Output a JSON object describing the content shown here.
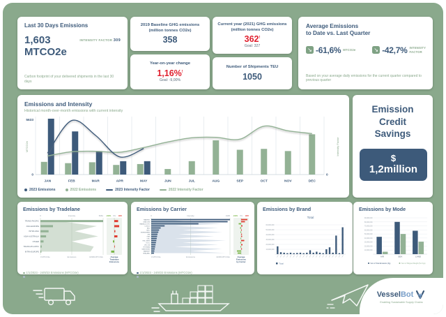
{
  "colors": {
    "background": "#8aa98c",
    "primary_blue": "#3d5a7a",
    "bar_green": "#93b295",
    "accent_red": "#e01e2d",
    "delta_red": "#e03c31",
    "delta_green": "#7ab648"
  },
  "header_cards": {
    "last30": {
      "title": "Last 30 Days Emissions",
      "value": "1,603",
      "unit": "MTCO2e",
      "intensity_label": "INTENSITY FACTOR",
      "intensity_value": "309",
      "footnote": "Carbon footprint of your delivered shipments in the last 30 days"
    },
    "baseline": {
      "title": "2019 Baseline GHG emissions (million tonnes CO2e)",
      "value": "358"
    },
    "yoy": {
      "title": "Year-on-year change",
      "value": "1,16%",
      "alert": "!",
      "goal": "Goal: -9,00%"
    },
    "current": {
      "title": "Current year (2021) GHG emissions (million tonnes CO2e)",
      "value": "362",
      "alert": "!",
      "goal": "Goal: 327"
    },
    "shipments": {
      "title": "Number of Shipments TEU",
      "value": "1050"
    },
    "average": {
      "title_line1": "Average Emissions",
      "title_line2": "to Date vs. Last Quarter",
      "stats": [
        {
          "value": "-61,6%",
          "label": "MTCO2e"
        },
        {
          "value": "-42,7%",
          "label": "INTENSITY FACTOR"
        }
      ],
      "footnote": "Based on your average daily emissions for the current quarter compared to previous quarter"
    }
  },
  "savings": {
    "title_line1": "Emission",
    "title_line2": "Credit",
    "title_line3": "Savings",
    "currency": "$",
    "amount": "1,2million"
  },
  "footer": {
    "brand_part1": "Vessel",
    "brand_part2": "Bot",
    "tagline": "Enabling Sustainable Supply Chains"
  },
  "chart_data": [
    {
      "id": "emissions_intensity",
      "type": "bar",
      "title": "Emissions and Intensity",
      "subtitle": "Historical month-over-month emissions with current intensity",
      "categories": [
        "JAN",
        "FEB",
        "MAR",
        "APR",
        "MAY",
        "JUN",
        "JUL",
        "AUG",
        "SEP",
        "OCT",
        "NOV",
        "DEC"
      ],
      "ylabel": "MTCO2e",
      "y2label": "Intensity Factor",
      "ylim": [
        0,
        5633
      ],
      "y2lim": [
        0,
        600
      ],
      "ytick_labels": [
        "0",
        "5633"
      ],
      "y2tick_labels": [
        "0"
      ],
      "legend_position": "bottom",
      "series": [
        {
          "name": "2023 Emissions",
          "kind": "bar",
          "color": "#3d5a7a",
          "values": [
            5633,
            4350,
            2370,
            1350,
            1350,
            null,
            null,
            null,
            null,
            null,
            null,
            null
          ]
        },
        {
          "name": "2022 Emissions",
          "kind": "bar",
          "color": "#93b295",
          "values": [
            1280,
            1150,
            1240,
            970,
            1060,
            560,
            1350,
            3450,
            2500,
            2590,
            2370,
            4060
          ]
        },
        {
          "name": "2023 Intensity Factor",
          "kind": "line",
          "color": "#3d5a7a",
          "values": [
            230,
            580,
            420,
            190,
            280,
            null,
            null,
            null,
            null,
            null,
            null,
            null
          ]
        },
        {
          "name": "2022 Intensity Factor",
          "kind": "line",
          "color": "#93b295",
          "values": [
            200,
            245,
            250,
            240,
            290,
            350,
            395,
            400,
            380,
            520,
            470,
            440
          ]
        }
      ]
    },
    {
      "id": "by_tradelane",
      "type": "bar",
      "orientation": "horizontal",
      "title": "Emissions by Tradelane",
      "categories": [
        "TRANS PACIFIC",
        "ASIA-EUROPE",
        "INTRA ASIA",
        "ASIA-AUSTRALIA",
        "OTHER",
        "TRANS ATLANTIC",
        "INTRA-EUROPE"
      ],
      "emissions_mtco2e": [
        10999,
        2200,
        1430,
        990,
        550,
        220,
        160
      ],
      "intensity_factor": [
        1700,
        5110,
        3120,
        5230,
        2840,
        4830,
        4540
      ],
      "delta_vs_average_pct": [
        55,
        70,
        15,
        45,
        -20,
        8,
        -45
      ],
      "xlim": [
        0,
        10999
      ],
      "intensity_lim": [
        0,
        5681
      ],
      "axis_top": {
        "left": "0",
        "center": "Intensity",
        "right": "5681"
      },
      "axis_bottom": {
        "left": "0 MTCO2e",
        "center": "Emissions",
        "right": "10999 MTCO2e"
      },
      "strip_labels": [
        "-100%",
        "0%",
        "100%"
      ],
      "strip_footer_lines": [
        "Average",
        "Tradelane",
        "Emissions"
      ],
      "footnotes": [
        "1/1/2023 - 24/8/23 Emissions (MTCO2e)",
        "Intensity Factor"
      ]
    },
    {
      "id": "by_carrier",
      "type": "bar",
      "orientation": "horizontal",
      "title": "Emissions by Carrier",
      "categories": [
        "MAERSK",
        "CMA CGM",
        "HAPAG-LLOYD",
        "COSCO",
        "ANL",
        "MSC",
        "EVERGREEN",
        "ZIM",
        "ONE",
        "CNC",
        "YML LINES",
        "OOCL",
        "[NO_ID]",
        "HYUNDAI",
        "YANG MING",
        "SAMSKIP",
        "SEALAND"
      ],
      "emissions_mtco2e": [
        41099,
        39870,
        24660,
        6990,
        4930,
        4110,
        3700,
        3290,
        3080,
        2880,
        2670,
        2470,
        2260,
        2060,
        1850,
        1640,
        1440
      ],
      "intensity_factor": [
        387,
        968,
        1742,
        581,
        1645,
        774,
        1742,
        677,
        1548,
        581,
        1838,
        774,
        1645,
        581,
        1742,
        968,
        1838
      ],
      "delta_vs_average_pct": [
        90,
        55,
        -35,
        20,
        -15,
        10,
        -10,
        12,
        15,
        -8,
        45,
        -12,
        20,
        -10,
        12,
        -60,
        -50
      ],
      "xlim": [
        0,
        41099
      ],
      "intensity_lim": [
        0,
        1935
      ],
      "axis_top": {
        "left": "0",
        "center": "Intensity",
        "right": "1935"
      },
      "axis_bottom": {
        "left": "0 MTCO2e",
        "center": "Emissions",
        "right": "41099 MTCO2e"
      },
      "strip_labels": [
        "-100%",
        "0%",
        "100%"
      ],
      "strip_footer_lines": [
        "Average",
        "Emissions",
        "by Carrier"
      ],
      "footnotes": [
        "1/1/2023 - 24/8/23 Emissions (MTCO2e)",
        "Intensity Factor"
      ]
    },
    {
      "id": "by_brand",
      "type": "bar",
      "title": "Emissions by Brand",
      "subtitle": "Total",
      "values": [
        16000000,
        4000000,
        3000000,
        2000000,
        3000000,
        2000000,
        2500000,
        3000000,
        2000000,
        3000000,
        8000000,
        3000000,
        5000000,
        3000000,
        2000000,
        10000000,
        14000000,
        3000000,
        38000000,
        2000000,
        55000000
      ],
      "ylim": [
        0,
        60000000
      ],
      "ytick_labels": [
        "10,000,000",
        "20,000,000",
        "30,000,000",
        "40,000,000",
        "50,000,000",
        "60,000,000"
      ],
      "bar_color": "#3d5a7a",
      "legend": [
        "Total"
      ]
    },
    {
      "id": "by_mode",
      "type": "bar",
      "title": "Emissions by Mode",
      "categories": [
        "AIR",
        "SEA",
        "LAND"
      ],
      "ylim": [
        0,
        90000000
      ],
      "ytick_labels": [
        "10,000,000",
        "20,000,000",
        "30,000,000",
        "40,000,000",
        "50,000,000",
        "60,000,000",
        "70,000,000",
        "80,000,000",
        "90,000,000"
      ],
      "series": [
        {
          "name": "Sum of Total Emissions (Kg)",
          "color": "#3d5a7a",
          "values": [
            43000000,
            80000000,
            58000000
          ]
        },
        {
          "name": "Sum of Shipped Weight (Per Kgs)",
          "color": "#93b295",
          "values": [
            6000000,
            50000000,
            31000000
          ]
        }
      ]
    }
  ]
}
